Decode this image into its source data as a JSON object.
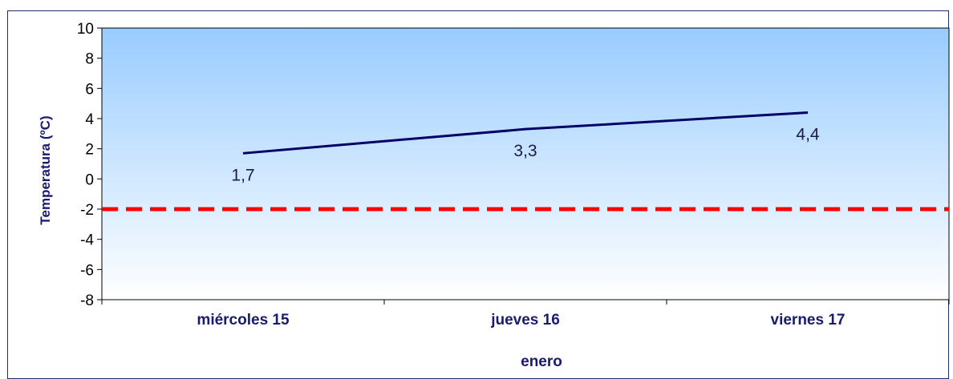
{
  "chart_data": {
    "type": "line",
    "categories": [
      "miércoles 15",
      "jueves 16",
      "viernes 17"
    ],
    "series": [
      {
        "values": [
          1.7,
          3.3,
          4.4
        ],
        "data_labels": [
          "1,7",
          "3,3",
          "4,4"
        ],
        "color": "#000066"
      }
    ],
    "reference_line": {
      "value": -2,
      "color": "#ff0000",
      "style": "dashed"
    },
    "xlabel": "enero",
    "ylabel": "Temperatura (ºC)",
    "ylim": [
      -8,
      10
    ],
    "yticks": [
      10,
      8,
      6,
      4,
      2,
      0,
      -2,
      -4,
      -6,
      -8
    ],
    "ytick_labels": [
      "10",
      "8",
      "6",
      "4",
      "2",
      "0",
      "-2",
      "-4",
      "-6",
      "-8"
    ],
    "background_gradient": [
      "#99ccff",
      "#ffffff"
    ],
    "grid": false,
    "legend": "none"
  }
}
